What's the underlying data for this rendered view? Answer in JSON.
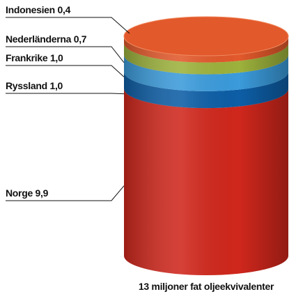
{
  "chart_data": {
    "type": "cylinder",
    "categories": [
      "Norge",
      "Ryssland",
      "Frankrike",
      "Nederländerna",
      "Indonesien"
    ],
    "values": [
      9.9,
      1.0,
      1.0,
      0.7,
      0.4
    ],
    "value_labels": [
      "9,9",
      "1,0",
      "1,0",
      "0,7",
      "0,4"
    ],
    "colors": [
      "#d0271c",
      "#0d5ea6",
      "#3b9bdb",
      "#9db23c",
      "#e2592b"
    ],
    "caption": "13 miljoner fat oljeekvivalenter"
  }
}
